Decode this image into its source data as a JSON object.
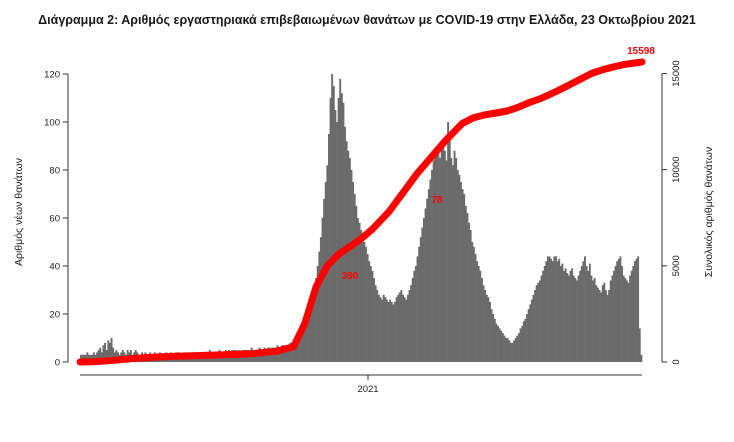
{
  "chart_data": {
    "type": "bar",
    "title": "Διάγραμμα 2: Αριθμός εργαστηριακά επιβεβαιωμένων θανάτων με COVID-19 στην Ελλάδα, 23 Οκτωβρίου 2021",
    "ylabel_left": "Αριθμός νέων θανάτων",
    "ylabel_right": "Συνολικός αριθμός θανάτων",
    "xlabel": "",
    "x_tick_label": "2021",
    "ylim_left": [
      0,
      125
    ],
    "yticks_left": [
      0,
      20,
      40,
      60,
      80,
      100,
      120
    ],
    "ylim_right": [
      0,
      15600
    ],
    "yticks_right": [
      0,
      5000,
      10000,
      15000
    ],
    "grid": false,
    "bar_color": "#6b6b6b",
    "line_color": "#ff0000",
    "series": [
      {
        "name": "new deaths",
        "type": "bar",
        "values": [
          3,
          3,
          3,
          3,
          4,
          3,
          3,
          3,
          4,
          3,
          4,
          5,
          6,
          4,
          7,
          8,
          5,
          9,
          8,
          10,
          6,
          4,
          5,
          4,
          3,
          4,
          5,
          4,
          3,
          5,
          4,
          5,
          3,
          4,
          5,
          4,
          3,
          3,
          4,
          3,
          4,
          3,
          3,
          4,
          3,
          3,
          4,
          3,
          3,
          4,
          3,
          3,
          3,
          4,
          3,
          3,
          4,
          3,
          3,
          4,
          4,
          4,
          3,
          3,
          4,
          4,
          4,
          3,
          3,
          4,
          4,
          4,
          3,
          4,
          4,
          4,
          3,
          4,
          4,
          4,
          5,
          4,
          4,
          3,
          4,
          4,
          5,
          4,
          4,
          4,
          5,
          4,
          5,
          4,
          5,
          5,
          5,
          4,
          5,
          4,
          5,
          5,
          5,
          5,
          5,
          4,
          6,
          5,
          5,
          5,
          5,
          6,
          5,
          5,
          6,
          5,
          6,
          6,
          5,
          6,
          6,
          6,
          7,
          6,
          6,
          7,
          7,
          6,
          7,
          7,
          8,
          8,
          9,
          10,
          9,
          11,
          12,
          11,
          13,
          14,
          15,
          18,
          20,
          22,
          25,
          30,
          35,
          40,
          46,
          52,
          60,
          68,
          75,
          82,
          95,
          110,
          120,
          115,
          105,
          100,
          110,
          118,
          112,
          108,
          98,
          92,
          88,
          85,
          80,
          75,
          70,
          65,
          60,
          58,
          55,
          52,
          50,
          48,
          45,
          42,
          40,
          38,
          35,
          32,
          30,
          28,
          27,
          26,
          28,
          27,
          26,
          25,
          26,
          25,
          24,
          25,
          27,
          28,
          29,
          30,
          28,
          27,
          26,
          28,
          30,
          32,
          35,
          38,
          40,
          44,
          48,
          52,
          56,
          60,
          64,
          68,
          72,
          76,
          80,
          84,
          86,
          88,
          90,
          85,
          92,
          90,
          88,
          84,
          100,
          95,
          85,
          82,
          88,
          85,
          80,
          78,
          75,
          72,
          70,
          65,
          62,
          58,
          55,
          50,
          48,
          45,
          42,
          40,
          38,
          35,
          32,
          30,
          28,
          27,
          25,
          22,
          20,
          18,
          16,
          15,
          14,
          13,
          12,
          11,
          10,
          10,
          9,
          8,
          8,
          9,
          10,
          11,
          12,
          14,
          15,
          17,
          18,
          20,
          22,
          24,
          26,
          28,
          30,
          32,
          33,
          34,
          36,
          38,
          40,
          42,
          44,
          44,
          43,
          42,
          44,
          44,
          42,
          43,
          40,
          41,
          38,
          39,
          37,
          36,
          38,
          39,
          36,
          35,
          34,
          36,
          38,
          40,
          42,
          44,
          40,
          38,
          41,
          36,
          34,
          35,
          32,
          31,
          30,
          29,
          32,
          33,
          30,
          28,
          30,
          34,
          36,
          38,
          40,
          42,
          43,
          44,
          40,
          36,
          35,
          34,
          33,
          36,
          38,
          40,
          42,
          43,
          44,
          14,
          3
        ]
      },
      {
        "name": "cumulative deaths",
        "type": "line",
        "x": [
          0,
          0.02,
          0.05,
          0.1,
          0.15,
          0.2,
          0.25,
          0.3,
          0.35,
          0.38,
          0.4,
          0.42,
          0.44,
          0.46,
          0.48,
          0.5,
          0.52,
          0.55,
          0.6,
          0.65,
          0.68,
          0.7,
          0.72,
          0.74,
          0.76,
          0.78,
          0.8,
          0.82,
          0.85,
          0.87,
          0.89,
          0.91,
          0.93,
          0.95,
          0.97,
          1.0
        ],
        "values": [
          0,
          10,
          60,
          200,
          280,
          330,
          370,
          420,
          560,
          800,
          2000,
          3900,
          5000,
          5600,
          6000,
          6400,
          6900,
          7820,
          9800,
          11500,
          12400,
          12700,
          12850,
          12950,
          13050,
          13250,
          13500,
          13700,
          14100,
          14400,
          14700,
          15000,
          15200,
          15350,
          15480,
          15598
        ]
      }
    ],
    "annotations": [
      "15598",
      "390",
      "78"
    ]
  }
}
